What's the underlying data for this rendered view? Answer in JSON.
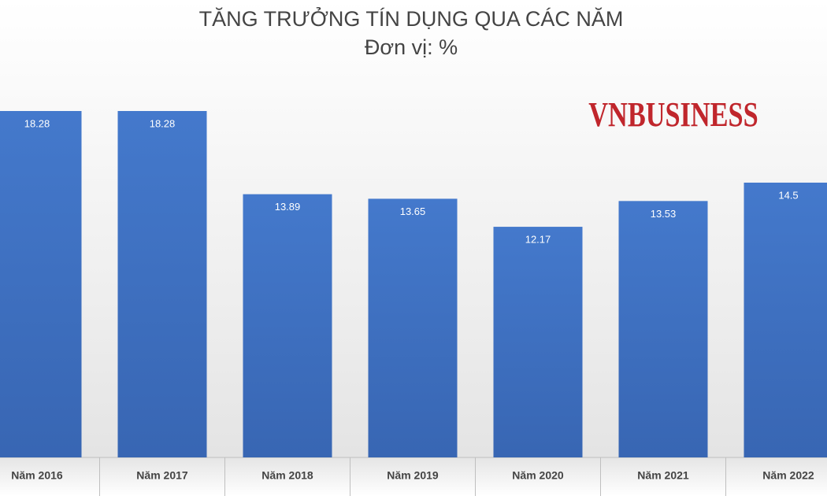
{
  "chart_data": {
    "type": "bar",
    "title": "TĂNG TRƯỞNG TÍN DỤNG QUA CÁC NĂM",
    "subtitle": "Đơn vị: %",
    "watermark": "VNBUSINESS",
    "categories": [
      "Năm 2016",
      "Năm 2017",
      "Năm 2018",
      "Năm 2019",
      "Năm 2020",
      "Năm 2021",
      "Năm 2022"
    ],
    "values": [
      18.28,
      18.28,
      13.89,
      13.65,
      12.17,
      13.53,
      14.5
    ],
    "color": "#3e73c6"
  }
}
